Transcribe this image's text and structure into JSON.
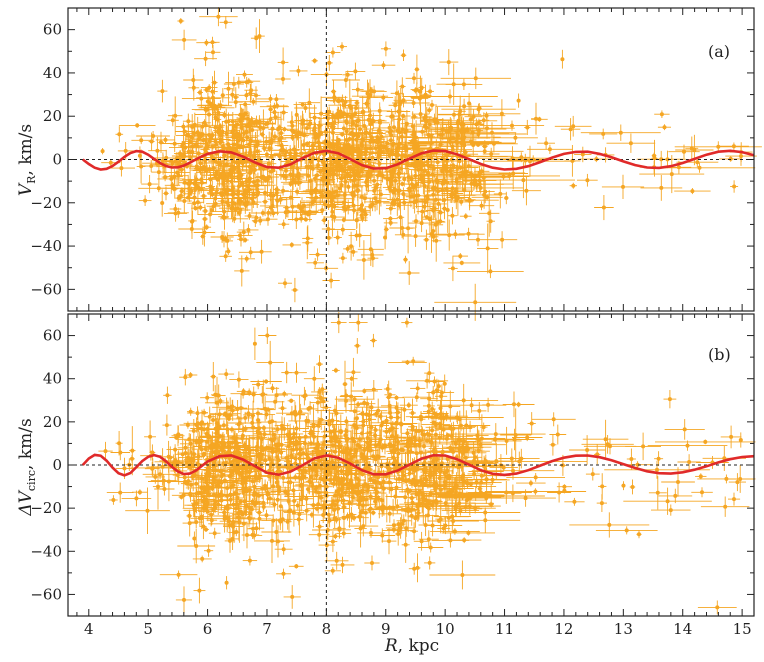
{
  "chart_data": [
    {
      "type": "scatter",
      "panel_label": "(a)",
      "ylabel_main": "V",
      "ylabel_sub": "R",
      "ylabel_unit": ", km/s",
      "xlim": [
        3.65,
        15.2
      ],
      "ylim": [
        -70,
        70
      ],
      "yticks": [
        -60,
        -40,
        -20,
        0,
        20,
        40,
        60
      ],
      "reference_lines": {
        "x": 8,
        "y": 0
      },
      "series": [
        {
          "name": "data points with error bars",
          "color": "#F5A623",
          "description": "dense cloud of several thousand points, concentrated at R 5.5–11 kpc, values mostly within ±40 km/s"
        },
        {
          "name": "periodic fit",
          "color": "#E02A2A",
          "x": [
            3.9,
            4.0,
            4.1,
            4.2,
            4.3,
            4.4,
            4.5,
            4.6,
            4.7,
            4.8,
            4.9,
            5.0,
            5.1,
            5.2,
            5.3,
            5.4,
            5.5,
            5.6,
            5.7,
            5.8,
            5.9,
            6.0,
            6.2,
            6.4,
            6.6,
            6.8,
            7.0,
            7.2,
            7.4,
            7.6,
            7.8,
            8.0,
            8.2,
            8.4,
            8.6,
            8.8,
            9.0,
            9.2,
            9.4,
            9.6,
            9.8,
            10.0,
            10.2,
            10.4,
            10.6,
            10.8,
            11.0,
            11.2,
            11.4,
            11.6,
            11.8,
            12.0,
            12.2,
            12.4,
            12.6,
            12.8,
            13.0,
            13.2,
            13.4,
            13.6,
            13.8,
            14.0,
            14.2,
            14.4,
            14.6,
            14.8,
            15.0,
            15.2
          ],
          "y": [
            0,
            -2.1,
            -3.8,
            -4.6,
            -4.3,
            -3.0,
            -1.0,
            1.2,
            3.0,
            3.9,
            3.6,
            2.2,
            0.3,
            -1.6,
            -3.0,
            -3.7,
            -3.6,
            -2.8,
            -1.5,
            0.0,
            1.4,
            2.6,
            3.8,
            3.3,
            1.3,
            -1.4,
            -3.5,
            -3.8,
            -2.2,
            0.7,
            3.1,
            4.0,
            2.9,
            0.2,
            -2.6,
            -4.2,
            -4.0,
            -2.2,
            0.4,
            2.8,
            4.1,
            3.9,
            2.4,
            0.2,
            -2.1,
            -3.8,
            -4.6,
            -4.3,
            -3.1,
            -1.2,
            0.9,
            2.6,
            3.5,
            3.6,
            2.6,
            1.0,
            -0.9,
            -2.6,
            -3.7,
            -3.9,
            -3.1,
            -1.6,
            0.3,
            2.2,
            3.6,
            4.0,
            3.4,
            2.0
          ]
        }
      ]
    },
    {
      "type": "scatter",
      "panel_label": "(b)",
      "ylabel_main": "ΔV",
      "ylabel_sub": "circ",
      "ylabel_unit": ", km/s",
      "xlabel_main": "R",
      "xlabel_unit": ", kpc",
      "xlim": [
        3.65,
        15.2
      ],
      "ylim": [
        -70,
        70
      ],
      "yticks": [
        -60,
        -40,
        -20,
        0,
        20,
        40,
        60
      ],
      "xticks": [
        4,
        5,
        6,
        7,
        8,
        9,
        10,
        11,
        12,
        13,
        14,
        15
      ],
      "reference_lines": {
        "x": 8,
        "y": 0
      },
      "series": [
        {
          "name": "data points with error bars",
          "color": "#F5A623",
          "description": "dense cloud of several thousand points, concentrated at R 5.5–11 kpc, values mostly within ±50 km/s"
        },
        {
          "name": "periodic fit",
          "color": "#E02A2A",
          "x": [
            3.9,
            4.0,
            4.1,
            4.2,
            4.3,
            4.4,
            4.5,
            4.6,
            4.7,
            4.8,
            4.9,
            5.0,
            5.1,
            5.2,
            5.3,
            5.4,
            5.5,
            5.6,
            5.7,
            5.8,
            5.9,
            6.0,
            6.2,
            6.4,
            6.6,
            6.8,
            7.0,
            7.2,
            7.4,
            7.6,
            7.8,
            8.0,
            8.2,
            8.4,
            8.6,
            8.8,
            9.0,
            9.2,
            9.4,
            9.6,
            9.8,
            10.0,
            10.2,
            10.4,
            10.6,
            10.8,
            11.0,
            11.2,
            11.4,
            11.6,
            11.8,
            12.0,
            12.2,
            12.4,
            12.6,
            12.8,
            13.0,
            13.2,
            13.4,
            13.6,
            13.8,
            14.0,
            14.2,
            14.4,
            14.6,
            14.8,
            15.0,
            15.2
          ],
          "y": [
            0,
            3.0,
            4.7,
            4.3,
            2.0,
            -1.2,
            -3.8,
            -4.8,
            -3.7,
            -1.0,
            1.8,
            3.8,
            4.6,
            3.8,
            1.7,
            -0.9,
            -3.0,
            -4.2,
            -4.0,
            -2.6,
            -0.5,
            1.6,
            4.1,
            4.4,
            2.5,
            -0.6,
            -3.6,
            -4.5,
            -3.0,
            -0.1,
            3.1,
            4.4,
            3.4,
            0.7,
            -2.4,
            -4.3,
            -4.3,
            -2.6,
            0.2,
            2.9,
            4.5,
            4.4,
            2.7,
            0.2,
            -2.4,
            -4.1,
            -4.6,
            -4.0,
            -2.4,
            -0.3,
            1.8,
            3.4,
            4.3,
            4.4,
            3.6,
            2.2,
            0.4,
            -1.4,
            -2.9,
            -3.8,
            -4.0,
            -3.4,
            -2.2,
            -0.6,
            1.2,
            2.7,
            3.7,
            4.1
          ]
        }
      ]
    }
  ]
}
